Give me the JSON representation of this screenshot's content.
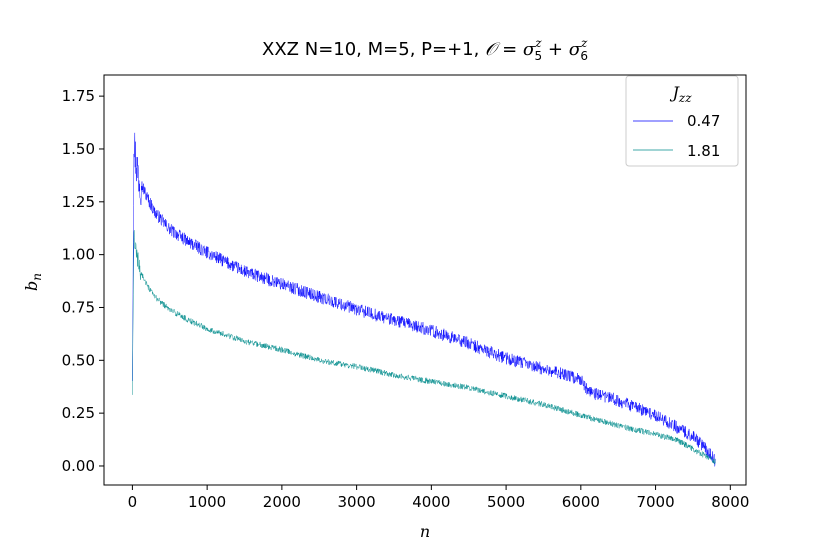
{
  "chart_data": {
    "type": "line",
    "title": "XXZ N=10, M=5, P=+1, 𝒪 = σ₅ᶻ + σ₆ᶻ",
    "title_parts": {
      "prefix": "XXZ N=10, M=5, P=+1, ",
      "operator": "𝒪",
      "equals": " = ",
      "sigma": "σ",
      "sup": "z",
      "sub1": "5",
      "plus": " + ",
      "sub2": "6"
    },
    "xlabel": "n",
    "ylabel": "b",
    "ylabel_sub": "n",
    "xlim": [
      -380,
      8210
    ],
    "ylim": [
      -0.09,
      1.85
    ],
    "xticks": [
      0,
      1000,
      2000,
      3000,
      4000,
      5000,
      6000,
      7000,
      8000
    ],
    "xtick_labels": [
      "0",
      "1000",
      "2000",
      "3000",
      "4000",
      "5000",
      "6000",
      "7000",
      "8000"
    ],
    "yticks": [
      0.0,
      0.25,
      0.5,
      0.75,
      1.0,
      1.25,
      1.5,
      1.75
    ],
    "ytick_labels": [
      "0.00",
      "0.25",
      "0.50",
      "0.75",
      "1.00",
      "1.25",
      "1.50",
      "1.75"
    ],
    "legend": {
      "title": "J",
      "title_sub": "zz",
      "position": "upper right"
    },
    "series": [
      {
        "name": "0.47",
        "color": "#0000ff",
        "noise": 0.03,
        "x": [
          0,
          20,
          50,
          100,
          200,
          300,
          500,
          750,
          1000,
          1500,
          2000,
          2500,
          3000,
          3500,
          4000,
          4500,
          4700,
          5000,
          5500,
          6000,
          6100,
          6500,
          7000,
          7300,
          7500,
          7650,
          7750,
          7800
        ],
        "y": [
          0.45,
          1.55,
          1.43,
          1.35,
          1.27,
          1.2,
          1.12,
          1.06,
          1.01,
          0.92,
          0.86,
          0.8,
          0.74,
          0.69,
          0.64,
          0.58,
          0.55,
          0.51,
          0.46,
          0.41,
          0.35,
          0.31,
          0.24,
          0.18,
          0.14,
          0.09,
          0.05,
          0.02
        ]
      },
      {
        "name": "1.81",
        "color": "#008b8b",
        "noise": 0.014,
        "x": [
          0,
          20,
          50,
          100,
          200,
          300,
          500,
          750,
          1000,
          1500,
          2000,
          2500,
          3000,
          3500,
          4000,
          4500,
          5000,
          5500,
          6000,
          6500,
          7000,
          7300,
          7500,
          7650,
          7800
        ],
        "y": [
          0.32,
          1.1,
          1.0,
          0.93,
          0.85,
          0.8,
          0.74,
          0.69,
          0.65,
          0.59,
          0.55,
          0.5,
          0.47,
          0.43,
          0.4,
          0.37,
          0.33,
          0.29,
          0.24,
          0.19,
          0.15,
          0.12,
          0.08,
          0.05,
          0.02
        ]
      }
    ]
  }
}
